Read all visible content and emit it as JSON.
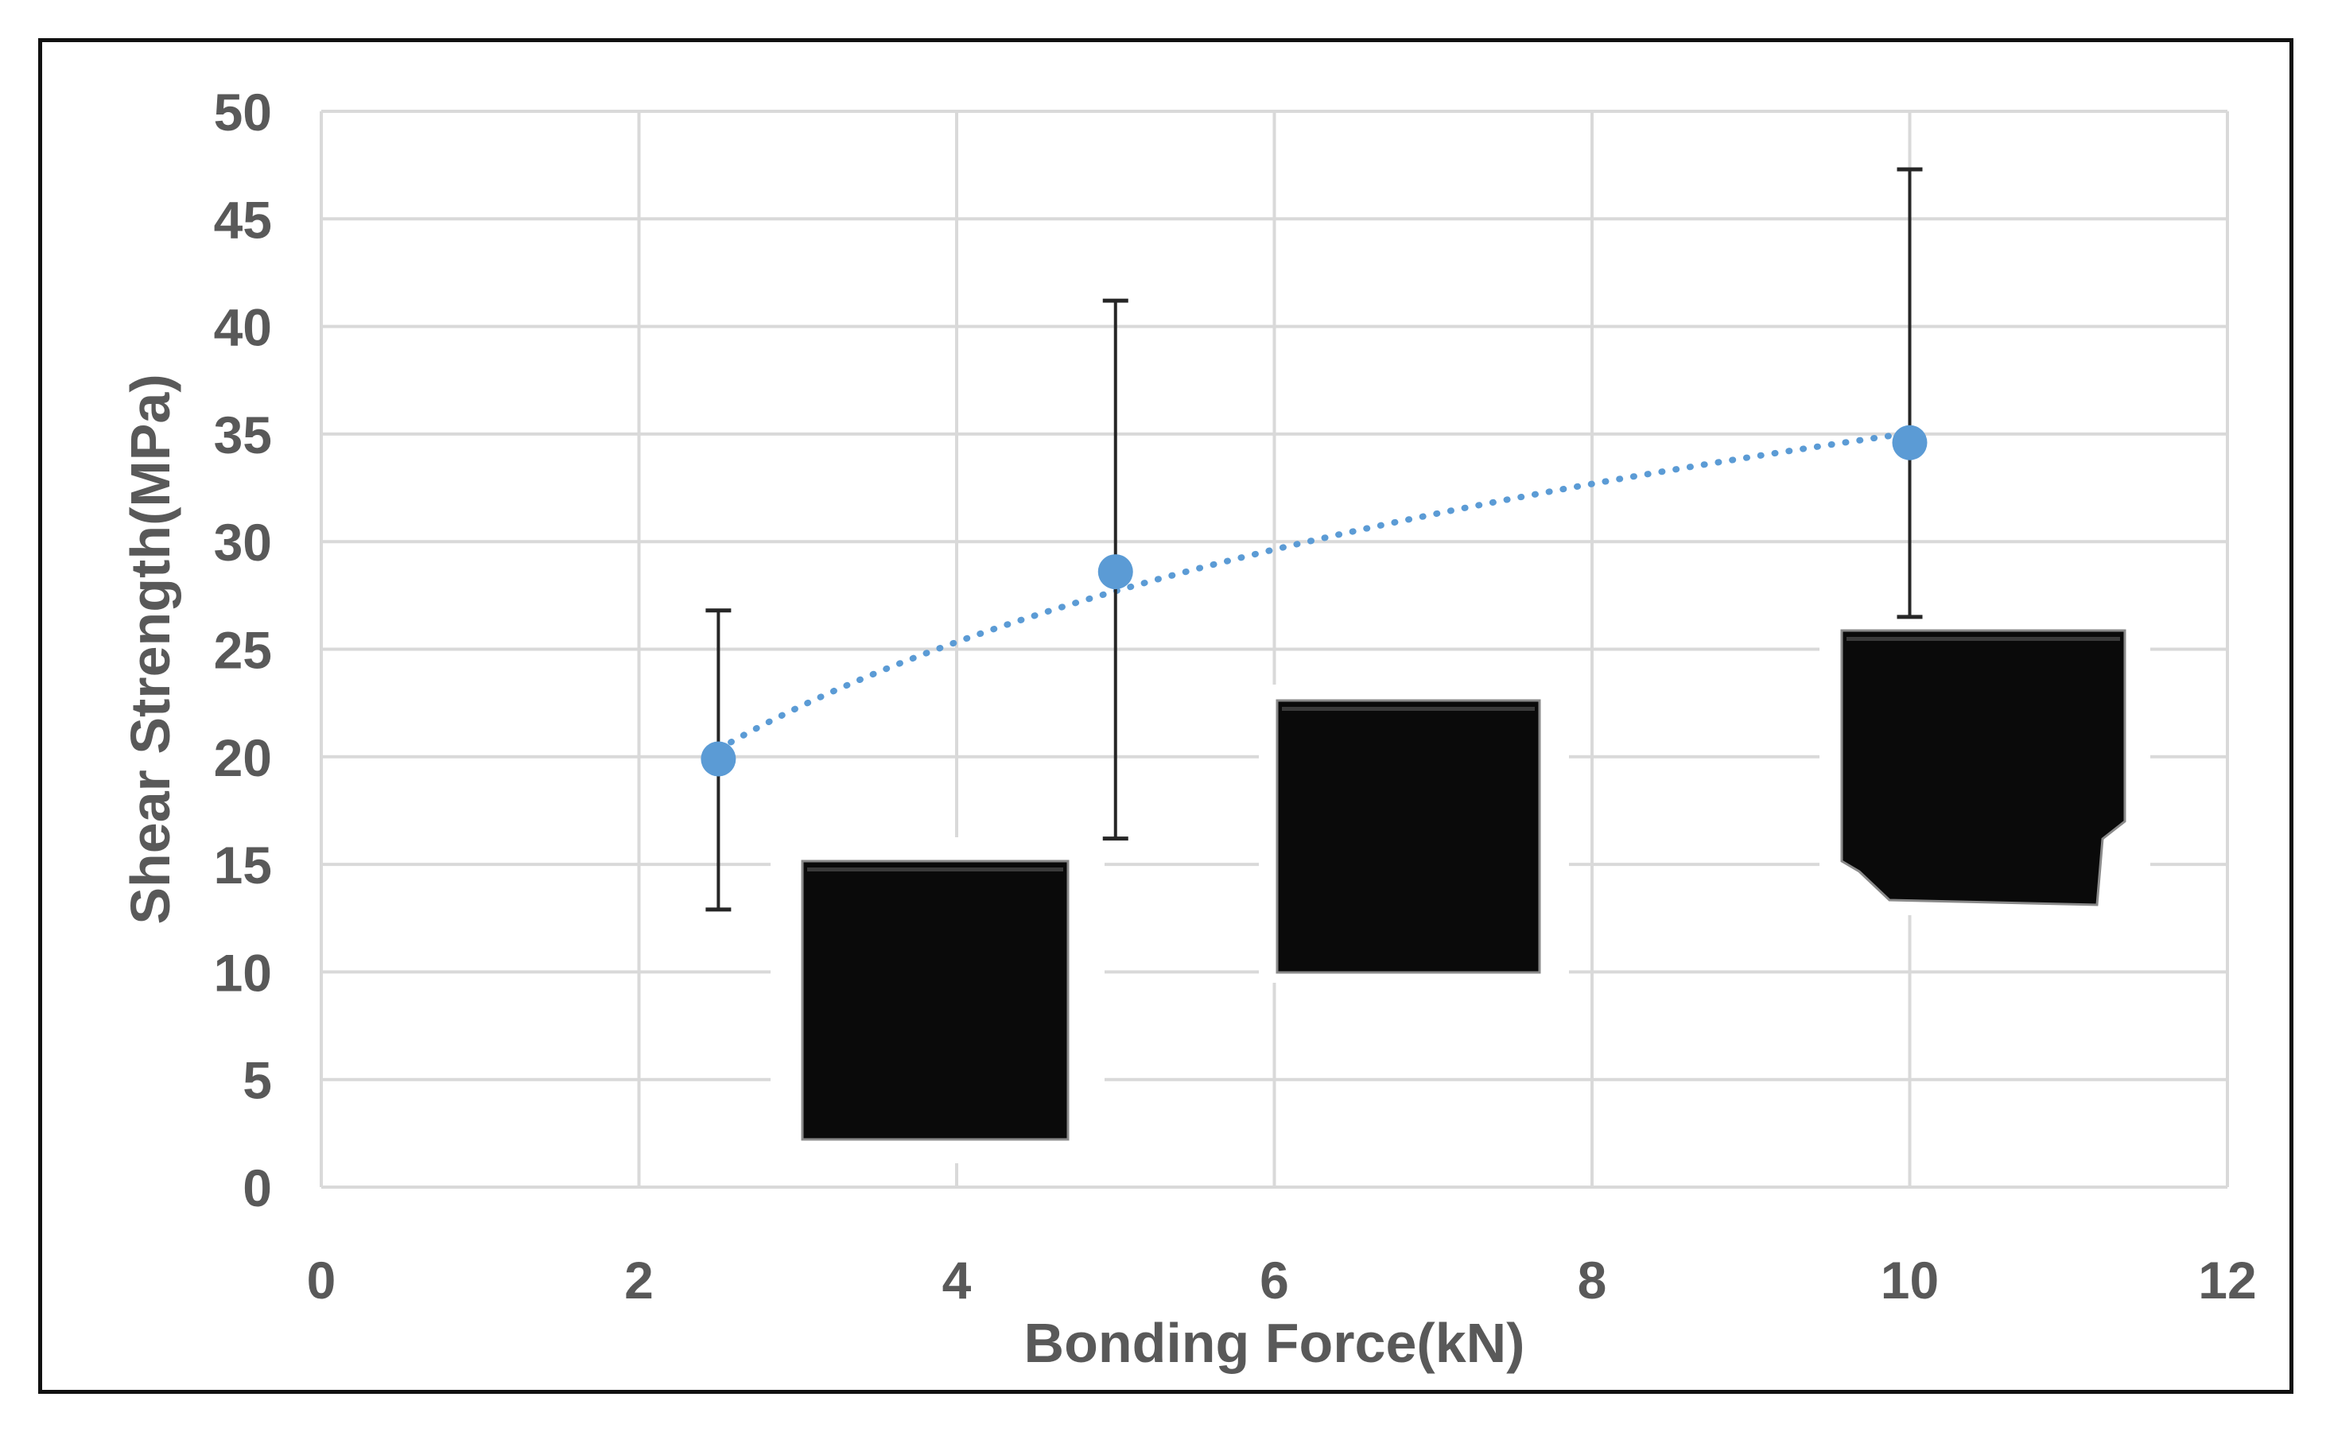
{
  "chart_data": {
    "type": "scatter",
    "xlabel": "Bonding Force(kN)",
    "ylabel": "Shear Strength(MPa)",
    "xlim": [
      0,
      12
    ],
    "ylim": [
      0,
      50
    ],
    "x_ticks": [
      "0",
      "2",
      "4",
      "6",
      "8",
      "10",
      "12"
    ],
    "y_ticks": [
      "0",
      "5",
      "10",
      "15",
      "20",
      "25",
      "30",
      "35",
      "40",
      "45",
      "50"
    ],
    "grid": true,
    "series": [
      {
        "x": [
          2.5,
          5,
          10
        ],
        "y": [
          19.9,
          28.6,
          34.6
        ],
        "error_low": [
          12.9,
          16.2,
          26.5
        ],
        "error_high": [
          26.8,
          41.2,
          47.3
        ],
        "color": "#5B9BD5"
      }
    ],
    "trendline": {
      "kind": "logarithmic",
      "style": "dotted",
      "color": "#5B9BD5",
      "x_range": [
        2.5,
        10
      ]
    },
    "inset_images": [
      {
        "name": "sample-photo-2.5kN",
        "depicts": "black square bonded sample"
      },
      {
        "name": "sample-photo-5kN",
        "depicts": "black square bonded sample"
      },
      {
        "name": "sample-photo-10kN",
        "depicts": "black square bonded sample with torn corner"
      }
    ],
    "colors": {
      "grid": "#d9d9d9",
      "axis_text": "#595959",
      "error_bar": "#262626",
      "sample": "#0a0a0a"
    }
  }
}
